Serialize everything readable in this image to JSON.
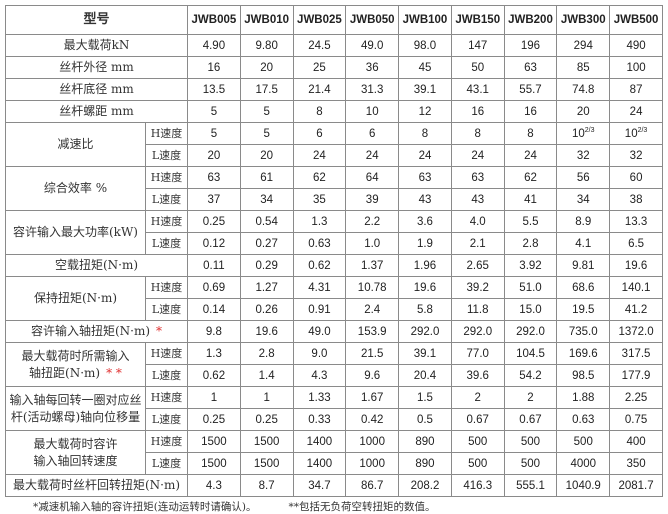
{
  "header": {
    "label": "型号",
    "models": [
      "JWB005",
      "JWB010",
      "JWB025",
      "JWB050",
      "JWB100",
      "JWB150",
      "JWB200",
      "JWB300",
      "JWB500"
    ]
  },
  "sub_labels": {
    "h": "H速度",
    "l": "L速度"
  },
  "rows": [
    {
      "label": "最大载荷kN",
      "values": [
        "4.90",
        "9.80",
        "24.5",
        "49.0",
        "98.0",
        "147",
        "196",
        "294",
        "490"
      ]
    },
    {
      "label": "丝杆外径 mm",
      "values": [
        "16",
        "20",
        "25",
        "36",
        "45",
        "50",
        "63",
        "85",
        "100"
      ]
    },
    {
      "label": "丝杆底径 mm",
      "values": [
        "13.5",
        "17.5",
        "21.4",
        "31.3",
        "39.1",
        "43.1",
        "55.7",
        "74.8",
        "87"
      ]
    },
    {
      "label": "丝杆螺距 mm",
      "values": [
        "5",
        "5",
        "8",
        "10",
        "12",
        "16",
        "16",
        "20",
        "24"
      ]
    }
  ],
  "reduction": {
    "label": "减速比",
    "h": [
      "5",
      "5",
      "6",
      "6",
      "8",
      "8",
      "8",
      "10",
      "10"
    ],
    "h_frac": "2/3",
    "l": [
      "20",
      "20",
      "24",
      "24",
      "24",
      "24",
      "24",
      "32",
      "32"
    ]
  },
  "efficiency": {
    "label": "综合效率 %",
    "h": [
      "63",
      "61",
      "62",
      "64",
      "63",
      "63",
      "62",
      "56",
      "60"
    ],
    "l": [
      "37",
      "34",
      "35",
      "39",
      "43",
      "43",
      "41",
      "34",
      "38"
    ]
  },
  "power": {
    "label": "容许输入最大功率(kW)",
    "h": [
      "0.25",
      "0.54",
      "1.3",
      "2.2",
      "3.6",
      "4.0",
      "5.5",
      "8.9",
      "13.3"
    ],
    "l": [
      "0.12",
      "0.27",
      "0.63",
      "1.0",
      "1.9",
      "2.1",
      "2.8",
      "4.1",
      "6.5"
    ]
  },
  "idle_torque": {
    "label": "空载扭矩(N·m)",
    "values": [
      "0.11",
      "0.29",
      "0.62",
      "1.37",
      "1.96",
      "2.65",
      "3.92",
      "9.81",
      "19.6"
    ]
  },
  "holding": {
    "label": "保持扭矩(N·m)",
    "h": [
      "0.69",
      "1.27",
      "4.31",
      "10.78",
      "19.6",
      "39.2",
      "51.0",
      "68.6",
      "140.1"
    ],
    "l": [
      "0.14",
      "0.26",
      "0.91",
      "2.4",
      "5.8",
      "11.8",
      "15.0",
      "19.5",
      "41.2"
    ]
  },
  "input_torque": {
    "label": "容许输入轴扭矩(N·m)",
    "mark": "*",
    "values": [
      "9.8",
      "19.6",
      "49.0",
      "153.9",
      "292.0",
      "292.0",
      "292.0",
      "735.0",
      "1372.0"
    ]
  },
  "required_torque": {
    "label1": "最大载荷时所需输入",
    "label2": "轴扭距(N·m)",
    "mark": "* *",
    "h": [
      "1.3",
      "2.8",
      "9.0",
      "21.5",
      "39.1",
      "77.0",
      "104.5",
      "169.6",
      "317.5"
    ],
    "l": [
      "0.62",
      "1.4",
      "4.3",
      "9.6",
      "20.4",
      "39.6",
      "54.2",
      "98.5",
      "177.9"
    ]
  },
  "displacement": {
    "label1": "输入轴每回转一圈对应丝",
    "label2": "杆(活动螺母)轴向位移量",
    "h": [
      "1",
      "1",
      "1.33",
      "1.67",
      "1.5",
      "2",
      "2",
      "1.88",
      "2.25"
    ],
    "l": [
      "0.25",
      "0.25",
      "0.33",
      "0.42",
      "0.5",
      "0.67",
      "0.67",
      "0.63",
      "0.75"
    ]
  },
  "speed": {
    "label1": "最大载荷时容许",
    "label2": "输入轴回转速度",
    "h": [
      "1500",
      "1500",
      "1400",
      "1000",
      "890",
      "500",
      "500",
      "500",
      "400"
    ],
    "l": [
      "1500",
      "1500",
      "1400",
      "1000",
      "890",
      "500",
      "500",
      "4000",
      "350"
    ]
  },
  "screw_torque": {
    "label": "最大载荷时丝杆回转扭矩(N·m)",
    "values": [
      "4.3",
      "8.7",
      "34.7",
      "86.7",
      "208.2",
      "416.3",
      "555.1",
      "1040.9",
      "2081.7"
    ]
  },
  "notes": {
    "note1": "*减速机输入轴的容许扭矩(连动运转时请确认)。",
    "note2": "**包括无负荷空转扭矩的数值。"
  },
  "colors": {
    "mark": "#e03030",
    "border": "#8a8a8a"
  }
}
